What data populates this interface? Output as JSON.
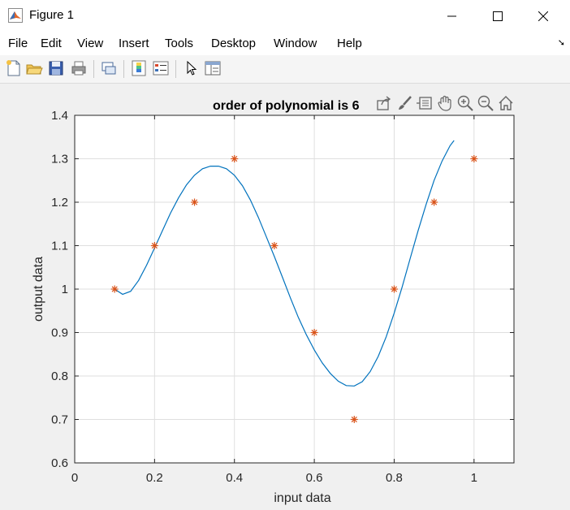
{
  "window": {
    "title": "Figure 1",
    "minimize_label": "—",
    "maximize_label": "☐",
    "close_label": "✕"
  },
  "menu": {
    "items": [
      {
        "label": "File"
      },
      {
        "label": "Edit"
      },
      {
        "label": "View"
      },
      {
        "label": "Insert"
      },
      {
        "label": "Tools"
      },
      {
        "label": "Desktop"
      },
      {
        "label": "Window"
      },
      {
        "label": "Help"
      }
    ],
    "overflow_arrow": "➘"
  },
  "toolbar": {
    "icons": [
      "new-figure-icon",
      "open-file-icon",
      "save-icon",
      "print-icon",
      "link-plot-icon",
      "insert-colorbar-icon",
      "insert-legend-icon",
      "edit-plot-icon",
      "property-inspector-icon"
    ]
  },
  "axes_toolbar": {
    "icons": [
      "export-icon",
      "brush-icon",
      "data-tips-icon",
      "pan-icon",
      "zoom-in-icon",
      "zoom-out-icon",
      "home-icon"
    ]
  },
  "chart_data": {
    "type": "line",
    "title": "order of polynomial is 6",
    "xlabel": "input data",
    "ylabel": "output data",
    "xlim": [
      0,
      1.1
    ],
    "ylim": [
      0.6,
      1.4
    ],
    "xticks": [
      0,
      0.2,
      0.4,
      0.6,
      0.8,
      1
    ],
    "xtick_labels": [
      "0",
      "0.2",
      "0.4",
      "0.6",
      "0.8",
      "1"
    ],
    "yticks": [
      0.6,
      0.7,
      0.8,
      0.9,
      1.0,
      1.1,
      1.2,
      1.3,
      1.4
    ],
    "ytick_labels": [
      "0.6",
      "0.7",
      "0.8",
      "0.9",
      "1",
      "1.1",
      "1.2",
      "1.3",
      "1.4"
    ],
    "grid": true,
    "series": [
      {
        "style": "line",
        "color": "#0072bd",
        "x": [
          0.1,
          0.12,
          0.14,
          0.16,
          0.18,
          0.2,
          0.22,
          0.24,
          0.26,
          0.28,
          0.3,
          0.32,
          0.34,
          0.36,
          0.38,
          0.4,
          0.42,
          0.44,
          0.46,
          0.48,
          0.5,
          0.52,
          0.54,
          0.56,
          0.58,
          0.6,
          0.62,
          0.64,
          0.66,
          0.68,
          0.7,
          0.72,
          0.74,
          0.76,
          0.78,
          0.8,
          0.82,
          0.84,
          0.86,
          0.88,
          0.9,
          0.92,
          0.94,
          0.95
        ],
        "y": [
          1.0,
          0.988,
          0.995,
          1.02,
          1.055,
          1.095,
          1.135,
          1.175,
          1.21,
          1.24,
          1.262,
          1.277,
          1.283,
          1.283,
          1.277,
          1.262,
          1.238,
          1.205,
          1.165,
          1.12,
          1.075,
          1.028,
          0.98,
          0.935,
          0.895,
          0.86,
          0.83,
          0.806,
          0.788,
          0.778,
          0.777,
          0.787,
          0.81,
          0.845,
          0.89,
          0.945,
          1.005,
          1.07,
          1.135,
          1.195,
          1.25,
          1.295,
          1.33,
          1.342
        ]
      },
      {
        "style": "scatter",
        "marker": "*",
        "color": "#d95319",
        "x": [
          0.1,
          0.2,
          0.3,
          0.4,
          0.5,
          0.6,
          0.7,
          0.8,
          0.9,
          1.0
        ],
        "y": [
          1.0,
          1.1,
          1.2,
          1.3,
          1.1,
          0.9,
          0.7,
          1.0,
          1.2,
          1.3
        ]
      }
    ]
  }
}
